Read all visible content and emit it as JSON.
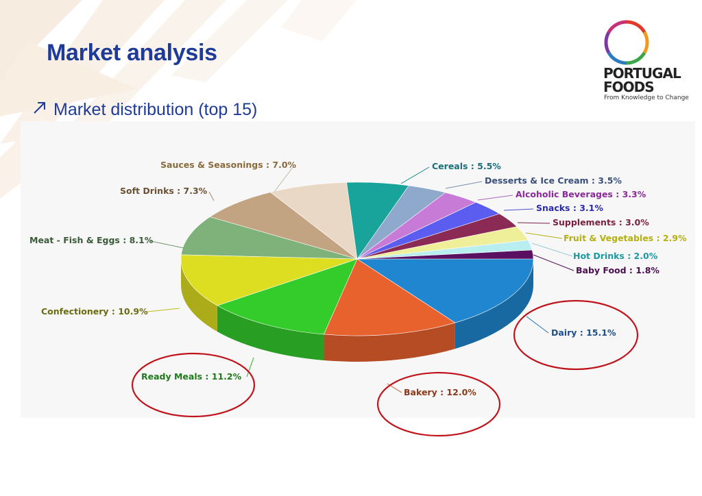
{
  "slide": {
    "title": "Market analysis",
    "subtitle": "Market distribution (top 15)"
  },
  "logo": {
    "line1": "PORTUGAL",
    "line2": "FOODS",
    "tagline": "From Knowledge to Change"
  },
  "colors": {
    "title": "#1f3b99",
    "highlight_circle": "#c0141c"
  },
  "chart_data": {
    "type": "pie",
    "title": "",
    "unit": "%",
    "slices": [
      {
        "label": "Dairy : 15.1%",
        "name": "Dairy",
        "value": 15.1,
        "color": "#1f86cf",
        "label_color": "#1d4f8a"
      },
      {
        "label": "Bakery : 12.0%",
        "name": "Bakery",
        "value": 12.0,
        "color": "#e8622e",
        "label_color": "#8a3a1a"
      },
      {
        "label": "Ready Meals : 11.2%",
        "name": "Ready Meals",
        "value": 11.2,
        "color": "#33cc2b",
        "label_color": "#1f7a1a"
      },
      {
        "label": "Confectionery : 10.9%",
        "name": "Confectionery",
        "value": 10.9,
        "color": "#dddd22",
        "label_color": "#6b6b10"
      },
      {
        "label": "Meat - Fish & Eggs : 8.1%",
        "name": "Meat - Fish & Eggs",
        "value": 8.1,
        "color": "#7fb27a",
        "label_color": "#3a5a38"
      },
      {
        "label": "Soft Drinks : 7.3%",
        "name": "Soft Drinks",
        "value": 7.3,
        "color": "#c2a382",
        "label_color": "#6b5134"
      },
      {
        "label": "Sauces & Seasonings : 7.0%",
        "name": "Sauces & Seasonings",
        "value": 7.0,
        "color": "#ead8c6",
        "label_color": "#8a6a3a"
      },
      {
        "label": "Cereals : 5.5%",
        "name": "Cereals",
        "value": 5.5,
        "color": "#18a49a",
        "label_color": "#1a6f7a"
      },
      {
        "label": "Desserts & Ice Cream : 3.5%",
        "name": "Desserts & Ice Cream",
        "value": 3.5,
        "color": "#8fa9cc",
        "label_color": "#3a4f7a"
      },
      {
        "label": "Alcoholic Beverages : 3.3%",
        "name": "Alcoholic Beverages",
        "value": 3.3,
        "color": "#c77ad6",
        "label_color": "#8a2a9a"
      },
      {
        "label": "Snacks : 3.1%",
        "name": "Snacks",
        "value": 3.1,
        "color": "#5b5cf0",
        "label_color": "#2a2ab0"
      },
      {
        "label": "Supplements : 3.0%",
        "name": "Supplements",
        "value": 3.0,
        "color": "#8a2a55",
        "label_color": "#7a1f3f"
      },
      {
        "label": "Fruit & Vegetables : 2.9%",
        "name": "Fruit & Vegetables",
        "value": 2.9,
        "color": "#efef9a",
        "label_color": "#b5b010"
      },
      {
        "label": "Hot Drinks : 2.0%",
        "name": "Hot Drinks",
        "value": 2.0,
        "color": "#b9eef0",
        "label_color": "#1a9aa0"
      },
      {
        "label": "Baby Food : 1.8%",
        "name": "Baby Food",
        "value": 1.8,
        "color": "#5a1060",
        "label_color": "#4a0f4f"
      }
    ],
    "highlighted": [
      "Dairy",
      "Bakery",
      "Ready Meals"
    ]
  }
}
